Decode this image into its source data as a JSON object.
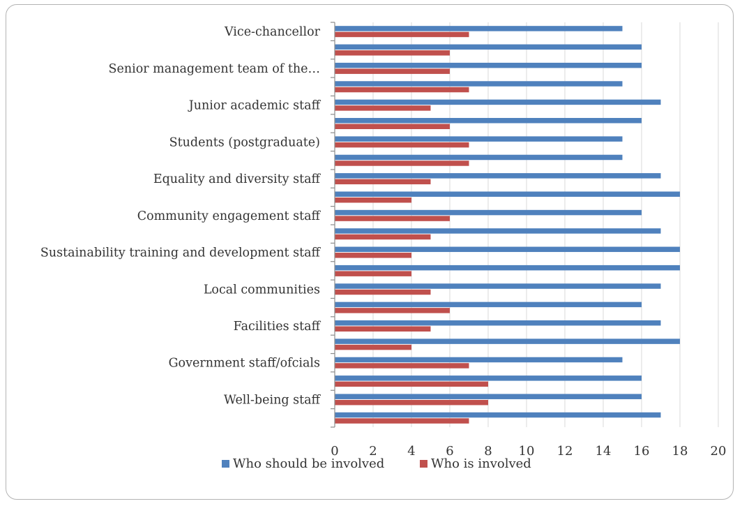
{
  "chart_data": {
    "type": "bar",
    "orientation": "horizontal",
    "categories": [
      "Vice-chancellor",
      "",
      "Senior management team of the…",
      "",
      "Junior academic staff",
      "",
      "Students (postgraduate)",
      "",
      "Equality and diversity staff",
      "",
      "Community engagement staff",
      "",
      "Sustainability training and development staff",
      "",
      "Local communities",
      "",
      "Facilities staff",
      "",
      "Government staff/of\u001fcials",
      "",
      "Well-being staff",
      ""
    ],
    "series": [
      {
        "name": "Who should be involved",
        "color": "#4f81bd",
        "values": [
          15,
          16,
          16,
          15,
          17,
          16,
          15,
          15,
          17,
          18,
          16,
          17,
          18,
          18,
          17,
          16,
          17,
          18,
          15,
          16,
          16,
          17
        ]
      },
      {
        "name": "Who is involved",
        "color": "#c0504d",
        "values": [
          7,
          6,
          6,
          7,
          5,
          6,
          7,
          7,
          5,
          4,
          6,
          5,
          4,
          4,
          5,
          6,
          5,
          4,
          7,
          8,
          8,
          7
        ]
      }
    ],
    "xlim": [
      0,
      20
    ],
    "xticks": [
      "0",
      "2",
      "4",
      "6",
      "8",
      "10",
      "12",
      "14",
      "16",
      "18",
      "20"
    ],
    "grid": "vertical",
    "legend": "bottom"
  }
}
